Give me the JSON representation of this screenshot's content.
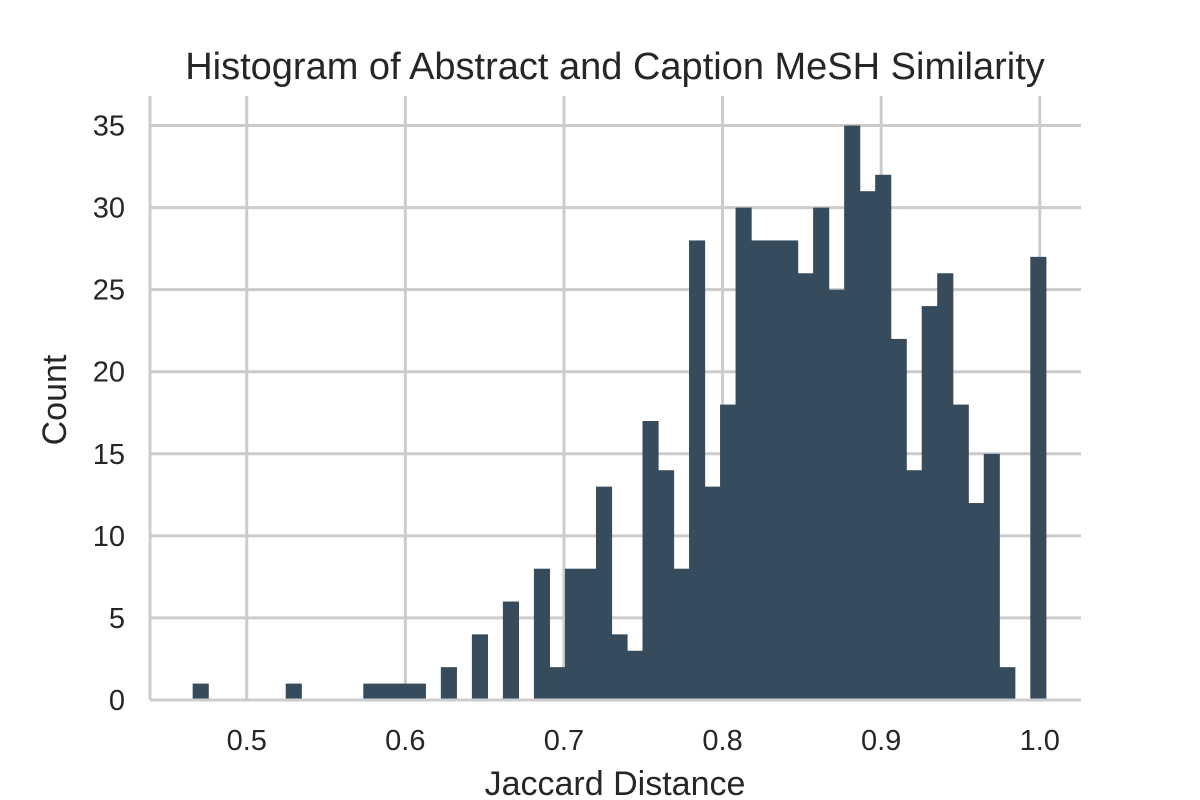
{
  "chart_data": {
    "type": "bar",
    "title": "Histogram of Abstract and Caption MeSH Similarity",
    "xlabel": "Jaccard Distance",
    "ylabel": "Count",
    "xlim": [
      0.439,
      1.026
    ],
    "ylim": [
      0,
      36.8
    ],
    "grid": true,
    "legend": "none",
    "bar_color": "#364c5c",
    "grid_color": "#cccccc",
    "x_ticks": [
      0.5,
      0.6,
      0.7,
      0.8,
      0.9,
      1.0
    ],
    "x_tick_labels": [
      "0.5",
      "0.6",
      "0.7",
      "0.8",
      "0.9",
      "1.0"
    ],
    "y_ticks": [
      0,
      5,
      10,
      15,
      20,
      25,
      30,
      35
    ],
    "y_tick_labels": [
      "0",
      "5",
      "10",
      "15",
      "20",
      "25",
      "30",
      "35"
    ],
    "bin_start": 0.4659,
    "bin_width": 0.00978,
    "counts": [
      1,
      0,
      0,
      0,
      0,
      0,
      1,
      0,
      0,
      0,
      0,
      1,
      1,
      1,
      1,
      0,
      2,
      0,
      4,
      0,
      6,
      0,
      8,
      2,
      8,
      8,
      13,
      4,
      3,
      17,
      14,
      8,
      28,
      13,
      18,
      30,
      28,
      28,
      28,
      26,
      30,
      25,
      35,
      31,
      32,
      22,
      14,
      24,
      26,
      18,
      12,
      15,
      2,
      0,
      27
    ]
  }
}
